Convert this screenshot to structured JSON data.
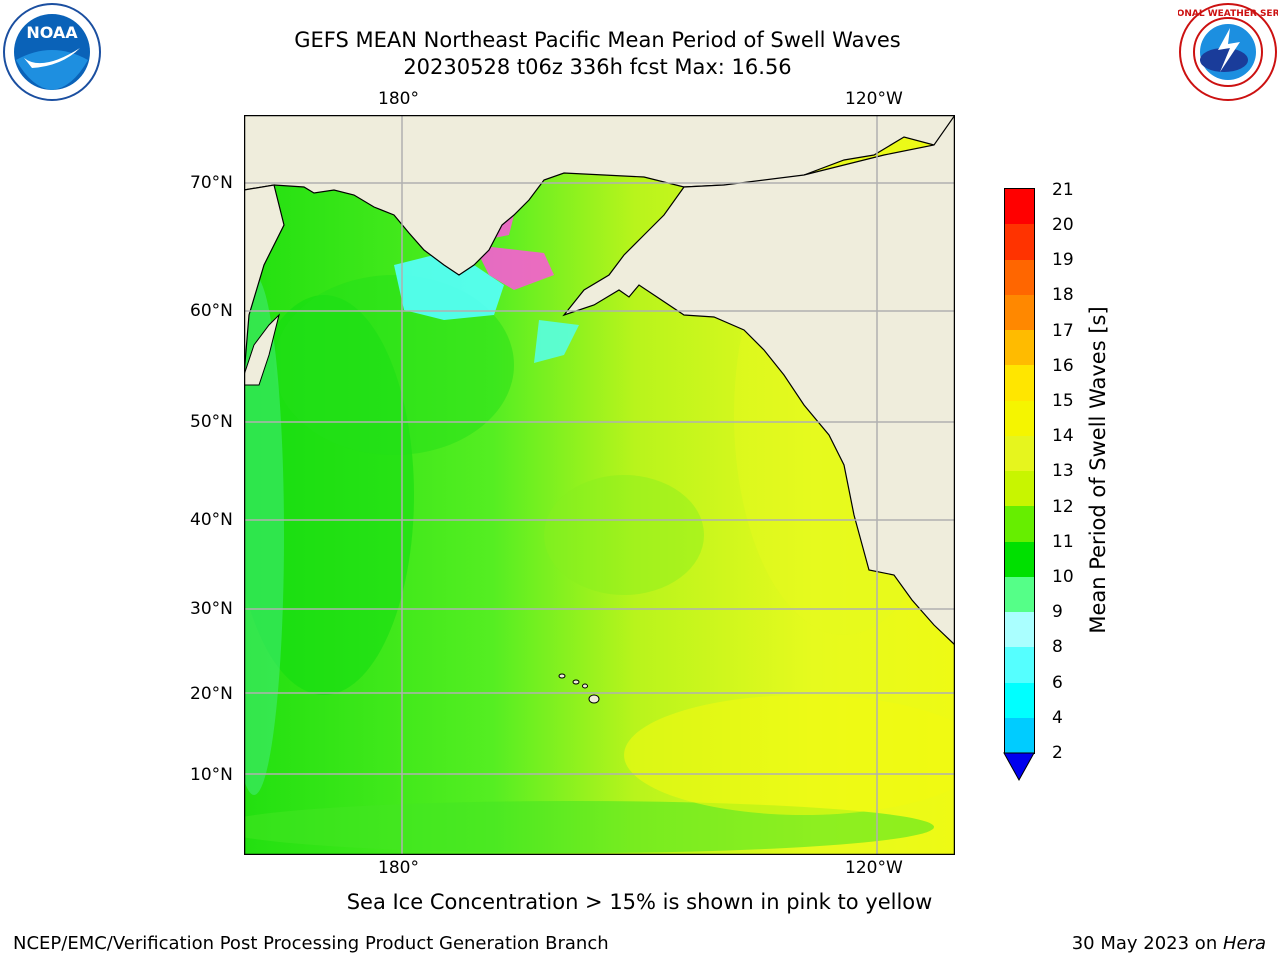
{
  "title": {
    "line1": "GEFS MEAN Northeast Pacific Mean Period of Swell Waves",
    "line2": "20230528 t06z 336h fcst   Max: 16.56"
  },
  "logos": {
    "left_name": "noaa-logo",
    "right_name": "nws-logo",
    "right_text": "NATIONAL WEATHER SERVICE"
  },
  "map": {
    "lon_labels": [
      "180°",
      "120°W"
    ],
    "lat_labels": [
      "70°N",
      "60°N",
      "50°N",
      "40°N",
      "30°N",
      "20°N",
      "10°N"
    ],
    "colors": {
      "land": "#efeddc",
      "ocean_green": "#55ee22",
      "ocean_yellow": "#e6fa1e",
      "ice_pink": "#ff55dd",
      "ice_cyan": "#55ffff",
      "grid": "#b0b0b0"
    }
  },
  "colorbar": {
    "label": "Mean Period of Swell Waves [s]",
    "ticks": [
      "21",
      "20",
      "19",
      "18",
      "17",
      "16",
      "15",
      "14",
      "13",
      "12",
      "11",
      "10",
      "9",
      "8",
      "6",
      "4",
      "2"
    ],
    "colors": [
      "#ff0000",
      "#ff3300",
      "#ff6600",
      "#ff8800",
      "#ffbb00",
      "#ffe600",
      "#f5f500",
      "#e6f51e",
      "#c8f500",
      "#66ee00",
      "#00e000",
      "#55ff88",
      "#aaffff",
      "#55ffff",
      "#00ffff",
      "#00ccff",
      "#0077ff"
    ],
    "extend_color": "#0000ee"
  },
  "note": "Sea Ice Concentration > 15% is shown in pink to yellow",
  "footer": {
    "left": "NCEP/EMC/Verification Post Processing Product Generation Branch",
    "date": "30 May 2023 on ",
    "host": "Hera"
  }
}
